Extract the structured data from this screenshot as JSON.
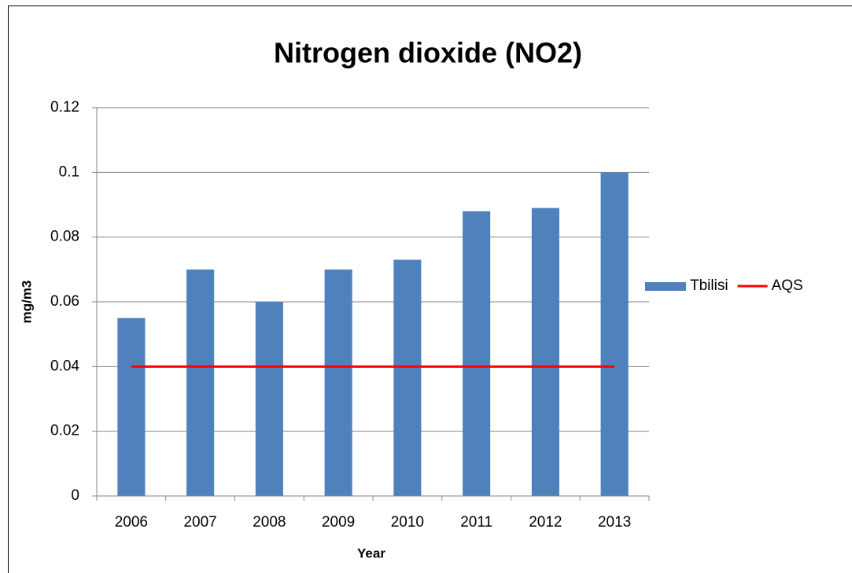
{
  "chart_data": {
    "type": "bar",
    "title": "Nitrogen dioxide (NO2)",
    "x_label": "Year",
    "y_label": "mg/m3",
    "categories": [
      "2006",
      "2007",
      "2008",
      "2009",
      "2010",
      "2011",
      "2012",
      "2013"
    ],
    "series": [
      {
        "name": "Tbilisi",
        "type": "bar",
        "color": "#4f81bd",
        "values": [
          0.055,
          0.07,
          0.06,
          0.07,
          0.073,
          0.088,
          0.089,
          0.1
        ]
      },
      {
        "name": "AQS",
        "type": "line",
        "color": "#ff0000",
        "values": [
          0.04,
          0.04,
          0.04,
          0.04,
          0.04,
          0.04,
          0.04,
          0.04
        ]
      }
    ],
    "ylim": [
      0,
      0.12
    ],
    "yticks": [
      0,
      0.02,
      0.04,
      0.06,
      0.08,
      0.1,
      0.12
    ],
    "grid": true,
    "legend": "right"
  }
}
